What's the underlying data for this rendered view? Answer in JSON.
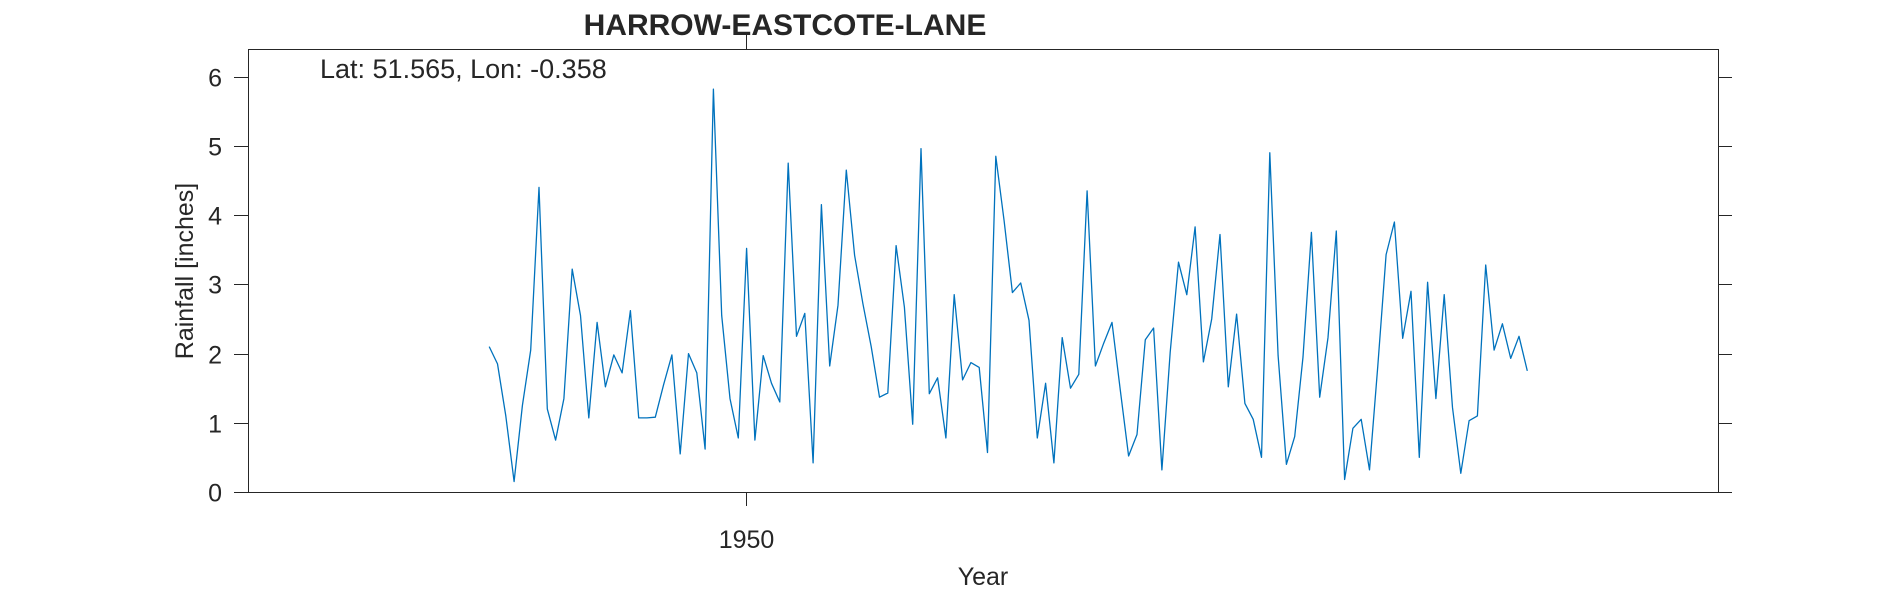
{
  "chart_data": {
    "type": "line",
    "title": "HARROW-EASTCOTE-LANE",
    "xlabel": "Year",
    "ylabel": "Rainfall [inches]",
    "annotation": "Lat: 51.565, Lon: -0.358",
    "x_start": 1947.42,
    "x_step": 0.08333,
    "xlim": [
      1945.0,
      1959.75
    ],
    "ylim": [
      0,
      6.4
    ],
    "yticks": [
      0,
      1,
      2,
      3,
      4,
      5,
      6
    ],
    "xticks": [
      1950
    ],
    "xtick_labels": [
      "1950"
    ],
    "grid": false,
    "series": [
      {
        "color": "#0072BD",
        "values": [
          2.1,
          1.85,
          1.1,
          0.15,
          1.25,
          2.05,
          4.4,
          1.2,
          0.75,
          1.35,
          3.22,
          2.55,
          1.07,
          2.45,
          1.52,
          1.98,
          1.72,
          2.62,
          1.07,
          1.07,
          1.08,
          1.55,
          1.98,
          0.55,
          2.0,
          1.72,
          0.62,
          5.82,
          2.55,
          1.35,
          0.78,
          3.52,
          0.75,
          1.97,
          1.57,
          1.3,
          4.75,
          2.25,
          2.58,
          0.42,
          4.15,
          1.82,
          2.7,
          4.65,
          3.42,
          2.72,
          2.1,
          1.37,
          1.43,
          3.56,
          2.67,
          0.98,
          4.96,
          1.42,
          1.65,
          0.78,
          2.85,
          1.62,
          1.87,
          1.8,
          0.57,
          4.85,
          3.92,
          2.88,
          3.02,
          2.48,
          0.78,
          1.57,
          0.42,
          2.23,
          1.5,
          1.7,
          4.35,
          1.82,
          2.15,
          2.45,
          1.47,
          0.52,
          0.83,
          2.2,
          2.37,
          0.32,
          2.02,
          3.32,
          2.85,
          3.83,
          1.88,
          2.5,
          3.72,
          1.52,
          2.57,
          1.28,
          1.05,
          0.5,
          4.9,
          1.97,
          0.4,
          0.8,
          1.95,
          3.75,
          1.37,
          2.23,
          3.77,
          0.18,
          0.92,
          1.05,
          0.32,
          1.82,
          3.43,
          3.9,
          2.22,
          2.9,
          0.5,
          3.03,
          1.35,
          2.85,
          1.22,
          0.27,
          1.03,
          1.1,
          3.28,
          2.05,
          2.43,
          1.93,
          2.25,
          1.75
        ]
      }
    ]
  }
}
